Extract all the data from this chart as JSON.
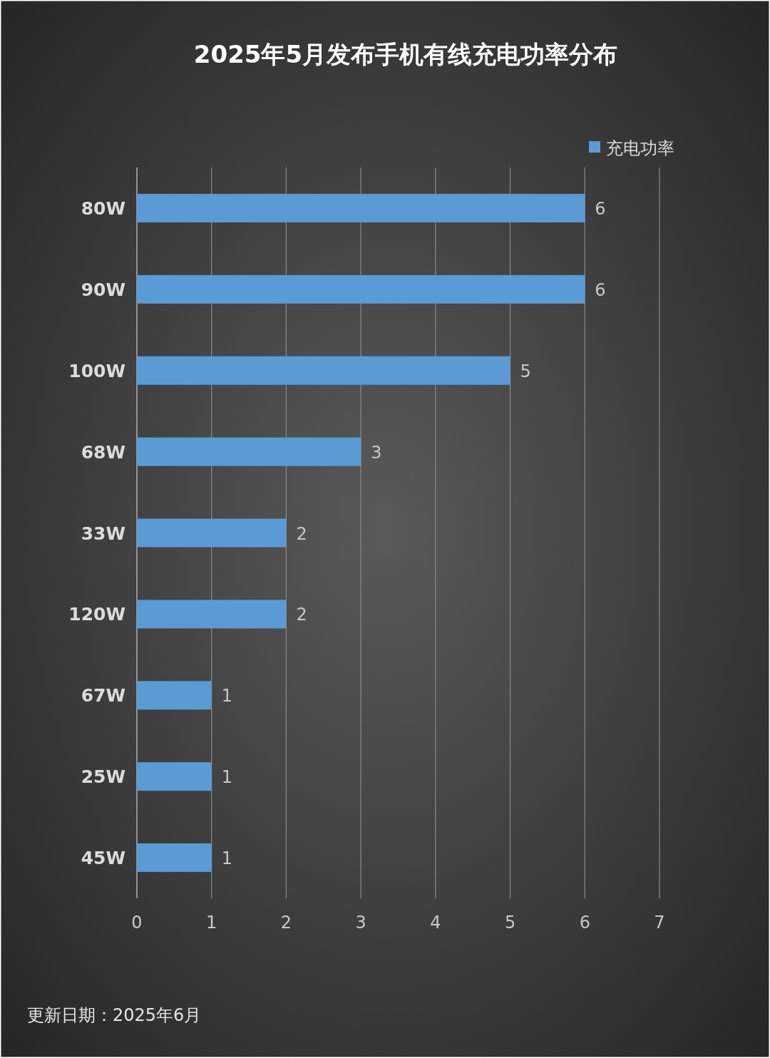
{
  "chart_data": {
    "type": "bar",
    "orientation": "horizontal",
    "title": "2025年5月发布手机有线充电功率分布",
    "categories": [
      "80W",
      "90W",
      "100W",
      "68W",
      "33W",
      "120W",
      "67W",
      "25W",
      "45W"
    ],
    "series": [
      {
        "name": "充电功率",
        "color": "#5b9bd5",
        "values": [
          6,
          6,
          5,
          3,
          2,
          2,
          1,
          1,
          1
        ]
      }
    ],
    "xlim": [
      0,
      7
    ],
    "xticks": [
      0,
      1,
      2,
      3,
      4,
      5,
      6,
      7
    ],
    "grid": "x",
    "data_labels": true,
    "legend": "top right",
    "annotations": [
      "更新日期：2025年6月"
    ]
  }
}
